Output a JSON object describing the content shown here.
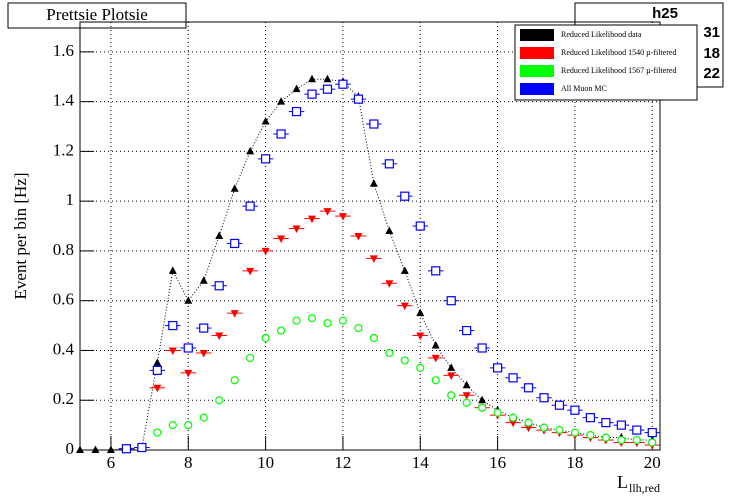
{
  "chart_data": {
    "type": "scatter",
    "title": "Prettsie Plotsie",
    "stats": {
      "name": "h25",
      "values": [
        "31",
        "18",
        "22"
      ]
    },
    "ylabel": "Event per bin [Hz]",
    "xlabel": "L",
    "xlabel_sub": "llh,red",
    "x": [
      5.2,
      5.6,
      6.0,
      6.4,
      6.8,
      7.2,
      7.6,
      8.0,
      8.4,
      8.8,
      9.2,
      9.6,
      10.0,
      10.4,
      10.8,
      11.2,
      11.6,
      12.0,
      12.4,
      12.8,
      13.2,
      13.6,
      14.0,
      14.4,
      14.8,
      15.2,
      15.6,
      16.0,
      16.4,
      16.8,
      17.2,
      17.6,
      18.0,
      18.4,
      18.8,
      19.2,
      19.6,
      20.0
    ],
    "series": [
      {
        "name": "Reduced Likelihood data",
        "color": "#000000",
        "marker": "triangle-up",
        "values": [
          0,
          0,
          0,
          0.005,
          0.01,
          0.35,
          0.72,
          0.6,
          0.68,
          0.86,
          1.05,
          1.2,
          1.32,
          1.4,
          1.45,
          1.49,
          1.49,
          1.48,
          1.42,
          1.07,
          0.88,
          0.72,
          0.55,
          0.42,
          0.33,
          0.26,
          0.2,
          0.16,
          0.13,
          0.11,
          0.09,
          0.08,
          0.07,
          0.06,
          0.05,
          0.05,
          0.04,
          0.04
        ]
      },
      {
        "name": "Reduced Likelihood 1540 µ-filtered",
        "color": "#ff0000",
        "marker": "triangle-down",
        "values": [
          null,
          null,
          null,
          0.005,
          0.01,
          0.25,
          0.4,
          0.31,
          0.39,
          0.46,
          0.55,
          0.72,
          0.8,
          0.85,
          0.89,
          0.93,
          0.96,
          0.94,
          0.86,
          0.77,
          0.67,
          0.58,
          0.46,
          0.37,
          0.3,
          0.22,
          0.17,
          0.14,
          0.11,
          0.09,
          0.08,
          0.07,
          0.06,
          0.05,
          0.04,
          0.03,
          0.03,
          0.02
        ]
      },
      {
        "name": "Reduced Likelihood 1567 µ-filtered",
        "color": "#00ff00",
        "marker": "circle-open",
        "values": [
          null,
          null,
          null,
          0.005,
          0.01,
          0.07,
          0.1,
          0.1,
          0.13,
          0.2,
          0.28,
          0.37,
          0.45,
          0.48,
          0.52,
          0.53,
          0.51,
          0.52,
          0.49,
          0.45,
          0.39,
          0.36,
          0.33,
          0.28,
          0.22,
          0.19,
          0.17,
          0.15,
          0.13,
          0.11,
          0.09,
          0.08,
          0.07,
          0.06,
          0.05,
          0.04,
          0.04,
          0.03
        ]
      },
      {
        "name": "All Muon MC",
        "color": "#0000ff",
        "marker": "square-open",
        "values": [
          null,
          null,
          null,
          0.005,
          0.01,
          0.32,
          0.5,
          0.41,
          0.49,
          0.66,
          0.83,
          0.98,
          1.17,
          1.27,
          1.36,
          1.43,
          1.45,
          1.47,
          1.41,
          1.31,
          1.15,
          1.02,
          0.9,
          0.72,
          0.6,
          0.48,
          0.41,
          0.33,
          0.29,
          0.25,
          0.21,
          0.18,
          0.16,
          0.13,
          0.11,
          0.1,
          0.08,
          0.07
        ]
      }
    ],
    "xlim": [
      5.2,
      20.2
    ],
    "ylim": [
      0,
      1.72
    ],
    "xticks": [
      6,
      8,
      10,
      12,
      14,
      16,
      18,
      20
    ],
    "yticks": [
      0,
      0.2,
      0.4,
      0.6,
      0.8,
      1,
      1.2,
      1.4,
      1.6
    ],
    "grid": true,
    "legend": "upper right"
  }
}
